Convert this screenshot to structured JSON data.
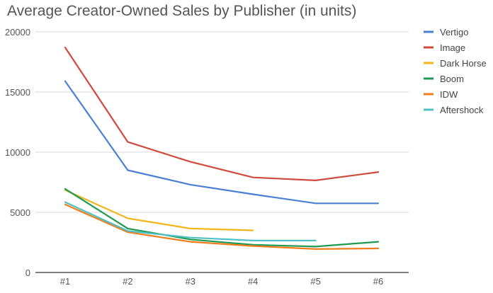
{
  "chart_data": {
    "type": "line",
    "title": "Average Creator-Owned Sales by Publisher (in units)",
    "xlabel": "",
    "ylabel": "",
    "categories": [
      "#1",
      "#2",
      "#3",
      "#4",
      "#5",
      "#6"
    ],
    "ylim": [
      0,
      20000
    ],
    "yticks": [
      0,
      5000,
      10000,
      15000,
      20000
    ],
    "grid": true,
    "legend_position": "right",
    "series": [
      {
        "name": "Vertigo",
        "color": "#4a7fd4",
        "values": [
          15900,
          8500,
          7300,
          6500,
          5750,
          5750
        ]
      },
      {
        "name": "Image",
        "color": "#d04a3c",
        "values": [
          18700,
          10850,
          9200,
          7900,
          7650,
          8350
        ]
      },
      {
        "name": "Dark Horse",
        "color": "#f2b51b",
        "values": [
          6850,
          4500,
          3650,
          3500,
          null,
          null
        ]
      },
      {
        "name": "Boom",
        "color": "#1f9a52",
        "values": [
          6950,
          3650,
          2750,
          2300,
          2150,
          2550
        ]
      },
      {
        "name": "IDW",
        "color": "#f07c1d",
        "values": [
          5650,
          3350,
          2550,
          2200,
          1950,
          2000
        ]
      },
      {
        "name": "Aftershock",
        "color": "#4fc0c4",
        "values": [
          5850,
          3450,
          2900,
          2650,
          2650,
          null
        ]
      }
    ]
  }
}
